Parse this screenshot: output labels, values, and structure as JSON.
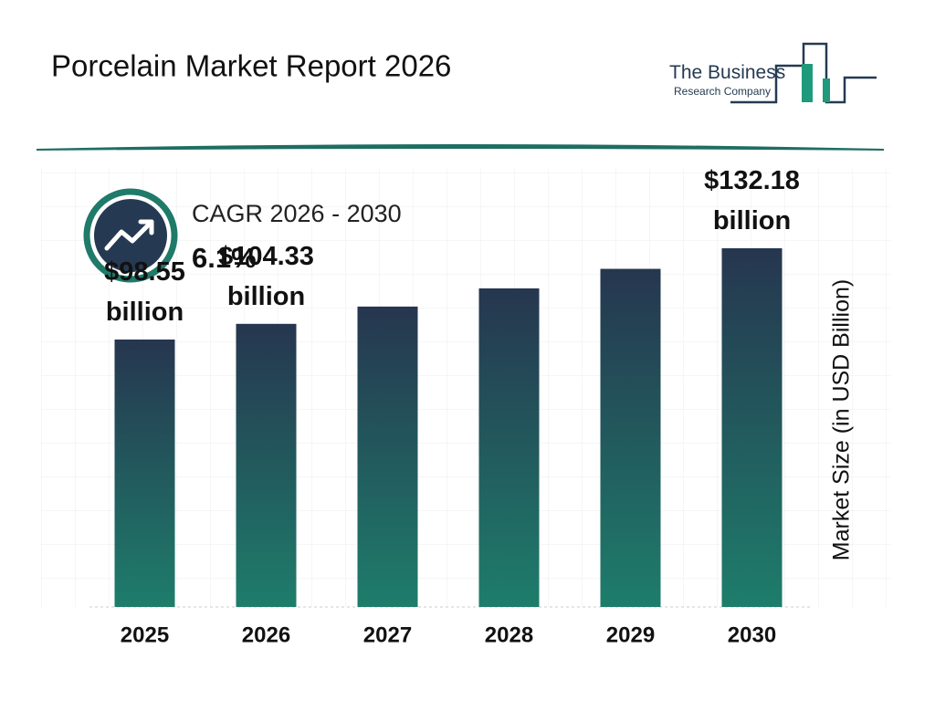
{
  "chart_data": {
    "type": "bar",
    "title": "Porcelain Market Report 2026",
    "brand": [
      "The Business",
      "Research Company"
    ],
    "annotation": {
      "label": "CAGR 2026 - 2030",
      "value": "6.1%"
    },
    "ylabel": "Market Size (in USD Billion)",
    "categories": [
      "2025",
      "2026",
      "2027",
      "2028",
      "2029",
      "2030"
    ],
    "values": [
      98.55,
      104.33,
      110.7,
      117.4,
      124.6,
      132.18
    ],
    "value_labels": [
      "$98.55 billion",
      "$104.33 billion",
      null,
      null,
      null,
      "$132.18 billion"
    ],
    "gradient": [
      "#26364f",
      "#1e7d6b"
    ]
  }
}
